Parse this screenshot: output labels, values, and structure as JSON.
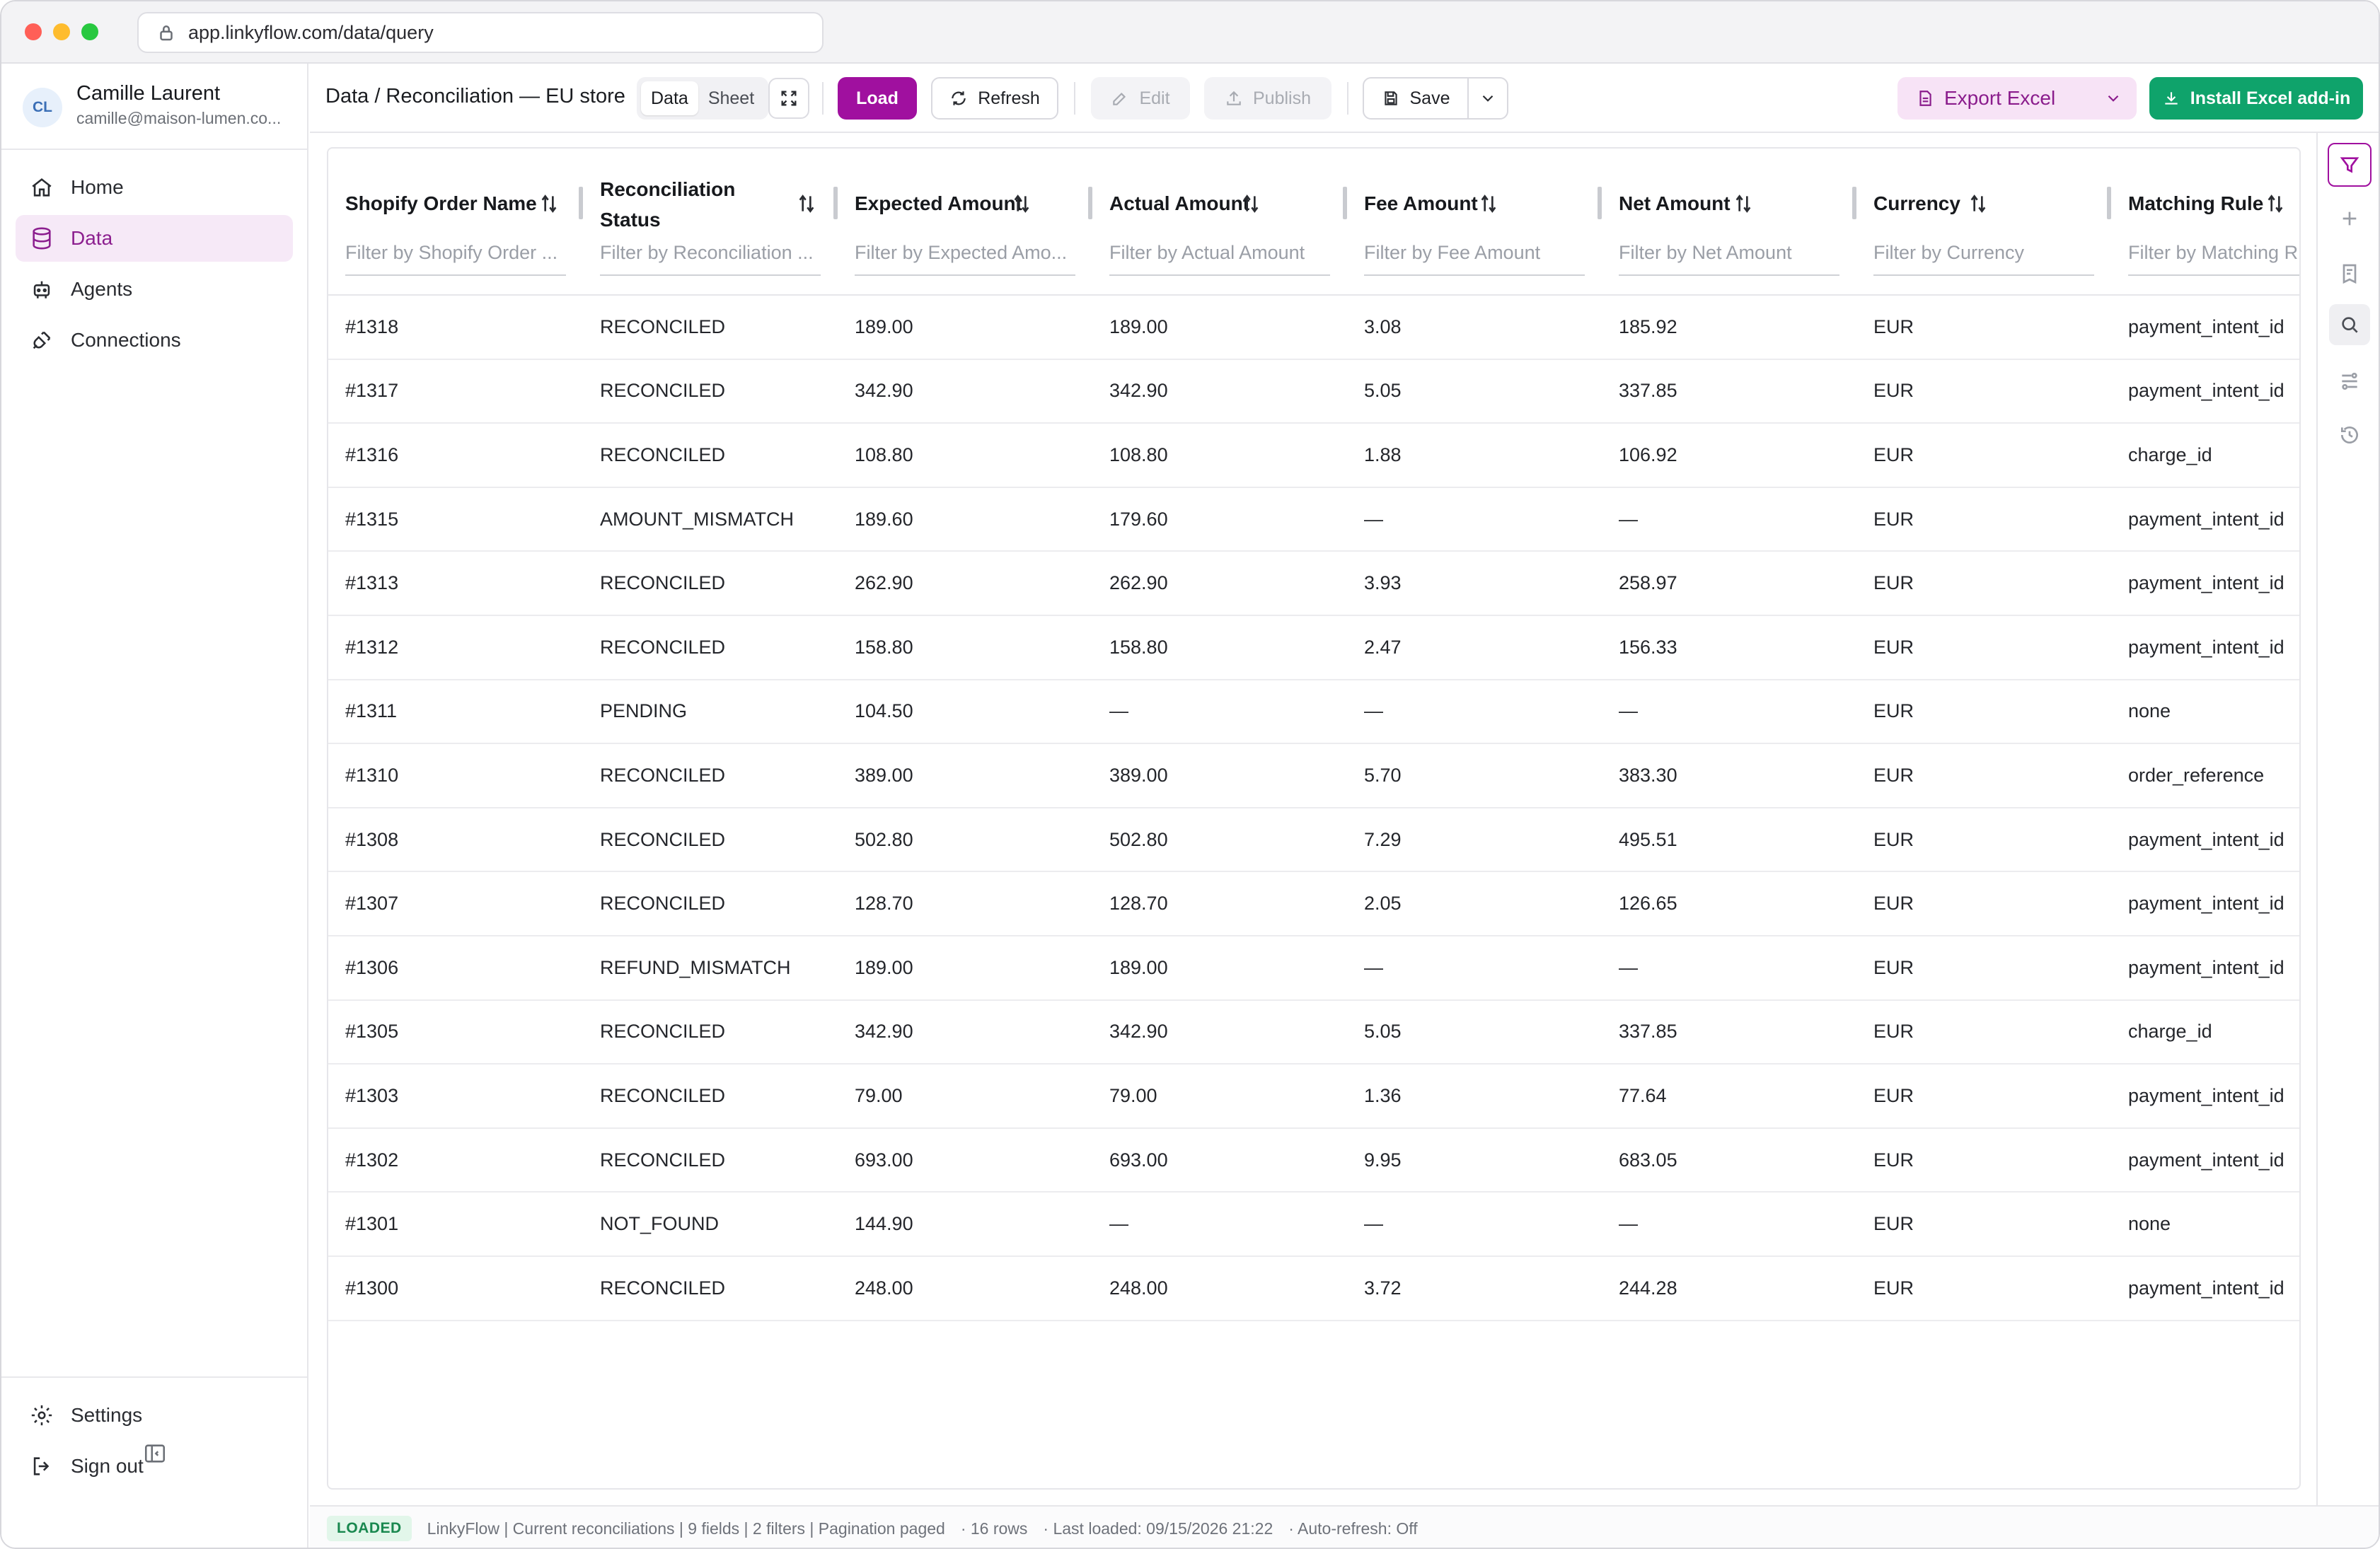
{
  "browser": {
    "url": "app.linkyflow.com/data/query"
  },
  "user": {
    "initials": "CL",
    "name": "Camille Laurent",
    "email": "camille@maison-lumen.co..."
  },
  "nav": {
    "home": "Home",
    "data": "Data",
    "agents": "Agents",
    "connections": "Connections",
    "settings": "Settings",
    "signout": "Sign out"
  },
  "toolbar": {
    "breadcrumb": "Data / Reconciliation — EU store",
    "view_data": "Data",
    "view_sheet": "Sheet",
    "load": "Load",
    "refresh": "Refresh",
    "edit": "Edit",
    "publish": "Publish",
    "save": "Save",
    "export": "Export Excel",
    "install": "Install Excel add-in"
  },
  "columns": [
    {
      "label": "Shopify Order Name",
      "filter": "Filter by Shopify Order ..."
    },
    {
      "label": "Reconciliation Status",
      "filter": "Filter by Reconciliation ..."
    },
    {
      "label": "Expected Amount",
      "filter": "Filter by Expected Amo..."
    },
    {
      "label": "Actual Amount",
      "filter": "Filter by Actual Amount"
    },
    {
      "label": "Fee Amount",
      "filter": "Filter by Fee Amount"
    },
    {
      "label": "Net Amount",
      "filter": "Filter by Net Amount"
    },
    {
      "label": "Currency",
      "filter": "Filter by Currency"
    },
    {
      "label": "Matching Rule",
      "filter": "Filter by Matching R"
    }
  ],
  "rows": [
    [
      "#1318",
      "RECONCILED",
      "189.00",
      "189.00",
      "3.08",
      "185.92",
      "EUR",
      "payment_intent_id"
    ],
    [
      "#1317",
      "RECONCILED",
      "342.90",
      "342.90",
      "5.05",
      "337.85",
      "EUR",
      "payment_intent_id"
    ],
    [
      "#1316",
      "RECONCILED",
      "108.80",
      "108.80",
      "1.88",
      "106.92",
      "EUR",
      "charge_id"
    ],
    [
      "#1315",
      "AMOUNT_MISMATCH",
      "189.60",
      "179.60",
      "—",
      "—",
      "EUR",
      "payment_intent_id"
    ],
    [
      "#1313",
      "RECONCILED",
      "262.90",
      "262.90",
      "3.93",
      "258.97",
      "EUR",
      "payment_intent_id"
    ],
    [
      "#1312",
      "RECONCILED",
      "158.80",
      "158.80",
      "2.47",
      "156.33",
      "EUR",
      "payment_intent_id"
    ],
    [
      "#1311",
      "PENDING",
      "104.50",
      "—",
      "—",
      "—",
      "EUR",
      "none"
    ],
    [
      "#1310",
      "RECONCILED",
      "389.00",
      "389.00",
      "5.70",
      "383.30",
      "EUR",
      "order_reference"
    ],
    [
      "#1308",
      "RECONCILED",
      "502.80",
      "502.80",
      "7.29",
      "495.51",
      "EUR",
      "payment_intent_id"
    ],
    [
      "#1307",
      "RECONCILED",
      "128.70",
      "128.70",
      "2.05",
      "126.65",
      "EUR",
      "payment_intent_id"
    ],
    [
      "#1306",
      "REFUND_MISMATCH",
      "189.00",
      "189.00",
      "—",
      "—",
      "EUR",
      "payment_intent_id"
    ],
    [
      "#1305",
      "RECONCILED",
      "342.90",
      "342.90",
      "5.05",
      "337.85",
      "EUR",
      "charge_id"
    ],
    [
      "#1303",
      "RECONCILED",
      "79.00",
      "79.00",
      "1.36",
      "77.64",
      "EUR",
      "payment_intent_id"
    ],
    [
      "#1302",
      "RECONCILED",
      "693.00",
      "693.00",
      "9.95",
      "683.05",
      "EUR",
      "payment_intent_id"
    ],
    [
      "#1301",
      "NOT_FOUND",
      "144.90",
      "—",
      "—",
      "—",
      "EUR",
      "none"
    ],
    [
      "#1300",
      "RECONCILED",
      "248.00",
      "248.00",
      "3.72",
      "244.28",
      "EUR",
      "payment_intent_id"
    ]
  ],
  "status": {
    "badge": "LOADED",
    "source": "LinkyFlow | Current reconciliations | 9 fields | 2 filters | Pagination paged",
    "rows": "· 16 rows",
    "last_loaded": "· Last loaded: 09/15/2026 21:22",
    "autorefresh": "· Auto-refresh: Off"
  },
  "colors": {
    "accent": "#a0109f",
    "install": "#0fa36b",
    "export_bg": "#f7e3f6"
  }
}
